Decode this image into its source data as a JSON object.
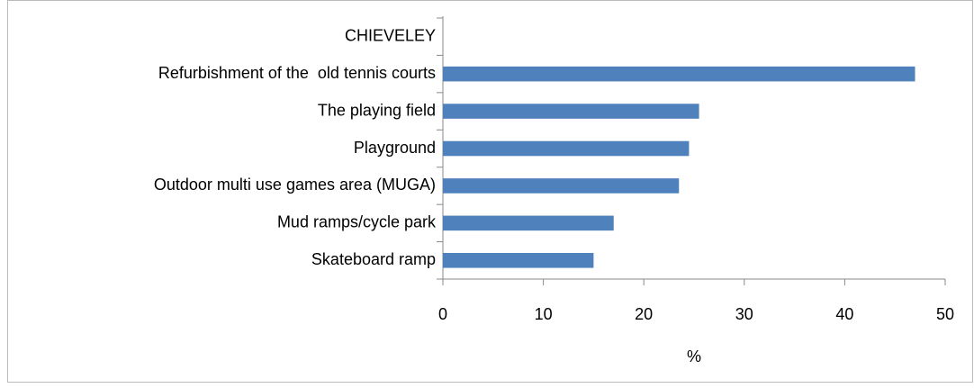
{
  "chart_data": {
    "type": "hbar",
    "categories": [
      "CHIEVELEY",
      "Refurbishment of the  old tennis courts",
      "The playing field",
      "Playground",
      "Outdoor multi use games area (MUGA)",
      "Mud ramps/cycle park",
      "Skateboard ramp"
    ],
    "values": [
      null,
      47,
      25.5,
      24.5,
      23.5,
      17,
      15
    ],
    "color": "#4f81bd",
    "xlabel": "%",
    "xlim": [
      0,
      50
    ],
    "xticks": [
      0,
      10,
      20,
      30,
      40,
      50
    ],
    "grid": false
  }
}
